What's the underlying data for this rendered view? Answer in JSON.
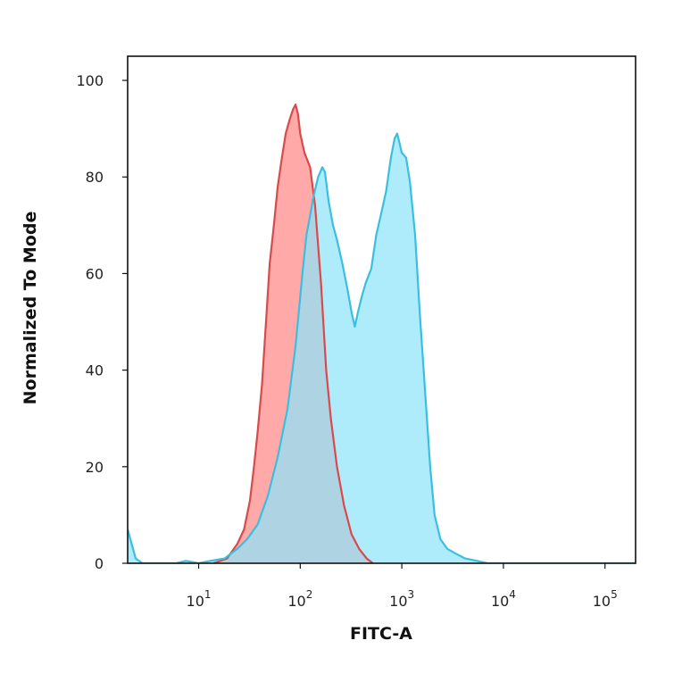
{
  "chart_data": {
    "type": "area",
    "title": "",
    "xlabel": "FITC-A",
    "ylabel": "Normalized To Mode",
    "x_scale": "log",
    "xlim": [
      2,
      200000
    ],
    "ylim": [
      0,
      105
    ],
    "grid": false,
    "legend": "none",
    "x_ticks": [
      {
        "base": "10",
        "exp": "1",
        "value": 10
      },
      {
        "base": "10",
        "exp": "2",
        "value": 100
      },
      {
        "base": "10",
        "exp": "3",
        "value": 1000
      },
      {
        "base": "10",
        "exp": "4",
        "value": 10000
      },
      {
        "base": "10",
        "exp": "5",
        "value": 100000
      }
    ],
    "y_ticks": [
      {
        "label": "0",
        "value": 0
      },
      {
        "label": "20",
        "value": 20
      },
      {
        "label": "40",
        "value": 40
      },
      {
        "label": "60",
        "value": 60
      },
      {
        "label": "80",
        "value": 80
      },
      {
        "label": "100",
        "value": 100
      }
    ],
    "series": [
      {
        "stroke": "#d94a4a",
        "fill": "#ff9a9a",
        "points": [
          [
            14,
            0
          ],
          [
            19,
            1
          ],
          [
            24,
            4
          ],
          [
            28,
            7
          ],
          [
            32,
            13
          ],
          [
            35,
            20
          ],
          [
            38,
            27
          ],
          [
            42,
            37
          ],
          [
            46,
            50
          ],
          [
            50,
            62
          ],
          [
            55,
            70
          ],
          [
            60,
            78
          ],
          [
            66,
            84
          ],
          [
            72,
            89
          ],
          [
            79,
            92
          ],
          [
            85,
            94
          ],
          [
            90,
            95
          ],
          [
            95,
            93
          ],
          [
            100,
            89
          ],
          [
            110,
            85
          ],
          [
            125,
            82
          ],
          [
            140,
            74
          ],
          [
            160,
            58
          ],
          [
            180,
            40
          ],
          [
            200,
            30
          ],
          [
            230,
            20
          ],
          [
            270,
            12
          ],
          [
            320,
            6
          ],
          [
            380,
            3
          ],
          [
            450,
            1
          ],
          [
            520,
            0
          ]
        ]
      },
      {
        "stroke": "#3bbfe0",
        "fill": "#8fe3fa",
        "points": [
          [
            2,
            7
          ],
          [
            2.4,
            1
          ],
          [
            2.8,
            0
          ],
          [
            6,
            0
          ],
          [
            7.5,
            0.5
          ],
          [
            10,
            0
          ],
          [
            13,
            0.5
          ],
          [
            18,
            1
          ],
          [
            24,
            3
          ],
          [
            30,
            5
          ],
          [
            38,
            8
          ],
          [
            48,
            14
          ],
          [
            60,
            22
          ],
          [
            75,
            32
          ],
          [
            90,
            45
          ],
          [
            105,
            60
          ],
          [
            115,
            68
          ],
          [
            125,
            72
          ],
          [
            135,
            76
          ],
          [
            150,
            80
          ],
          [
            165,
            82
          ],
          [
            175,
            81
          ],
          [
            190,
            75
          ],
          [
            210,
            70
          ],
          [
            230,
            67
          ],
          [
            260,
            62
          ],
          [
            290,
            57
          ],
          [
            320,
            52
          ],
          [
            345,
            49
          ],
          [
            370,
            52
          ],
          [
            400,
            55
          ],
          [
            440,
            58
          ],
          [
            500,
            61
          ],
          [
            560,
            68
          ],
          [
            620,
            72
          ],
          [
            700,
            77
          ],
          [
            780,
            84
          ],
          [
            850,
            88
          ],
          [
            900,
            89
          ],
          [
            950,
            87
          ],
          [
            1000,
            85
          ],
          [
            1100,
            84
          ],
          [
            1200,
            79
          ],
          [
            1350,
            68
          ],
          [
            1500,
            52
          ],
          [
            1700,
            35
          ],
          [
            1900,
            20
          ],
          [
            2100,
            10
          ],
          [
            2400,
            5
          ],
          [
            2800,
            3
          ],
          [
            3400,
            2
          ],
          [
            4200,
            1
          ],
          [
            5500,
            0.5
          ],
          [
            7000,
            0
          ],
          [
            200000,
            0
          ]
        ]
      }
    ]
  }
}
